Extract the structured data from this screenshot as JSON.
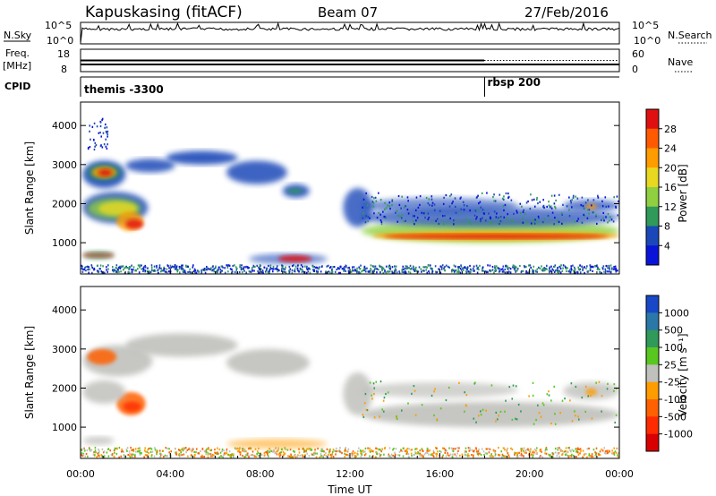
{
  "header": {
    "station": "Kapuskasing (fitACF)",
    "beam": "Beam 07",
    "date": "27/Feb/2016"
  },
  "top_panels": {
    "nsky_label": "N.Sky",
    "nsky_ticks": [
      "10^5",
      "10^0"
    ],
    "nsearch_label": "N.Search",
    "nsearch_ticks": [
      "10^5",
      "10^0"
    ],
    "freq_label_1": "Freq.",
    "freq_label_2": "[MHz]",
    "freq_ticks": [
      "18",
      "8"
    ],
    "nave_label": "Nave",
    "nave_ticks": [
      "60",
      "0"
    ],
    "cpid_label": "CPID",
    "cpid_segments": [
      {
        "label": "themis -3300",
        "start_hour": 0
      },
      {
        "label": "rbsp 200",
        "start_hour": 18.0
      }
    ]
  },
  "chart_data": [
    {
      "type": "heatmap",
      "name": "power-panel",
      "ylabel": "Slant Range [km]",
      "yticks": [
        "1000",
        "2000",
        "3000",
        "4000"
      ],
      "ylim": [
        200,
        4600
      ],
      "xlim": [
        0,
        24
      ],
      "colorbar": {
        "label": "Power [dB]",
        "ticks": [
          "28",
          "24",
          "20",
          "16",
          "12",
          "8",
          "4"
        ],
        "colors": [
          "#e01010",
          "#ff5a00",
          "#ff9c00",
          "#e8d820",
          "#90d040",
          "#2f9a5a",
          "#1a48b8",
          "#0a14d8"
        ]
      }
    },
    {
      "type": "heatmap",
      "name": "velocity-panel",
      "ylabel": "Slant Range [km]",
      "yticks": [
        "1000",
        "2000",
        "3000",
        "4000"
      ],
      "ylim": [
        200,
        4600
      ],
      "xlim": [
        0,
        24
      ],
      "colorbar": {
        "label": "Velocity [m s⁻¹]",
        "ticks": [
          "1000",
          "500",
          "100",
          "25",
          "-25",
          "-100",
          "-500",
          "-1000"
        ],
        "colors": [
          "#1848c8",
          "#2a78a8",
          "#2f9a5a",
          "#58c820",
          "#c0c0bc",
          "#ff9c00",
          "#ff6000",
          "#ff2a00",
          "#d80000"
        ]
      }
    }
  ],
  "xaxis": {
    "label": "Time UT",
    "ticks": [
      "00:00",
      "04:00",
      "08:00",
      "12:00",
      "16:00",
      "20:00",
      "00:00"
    ]
  }
}
